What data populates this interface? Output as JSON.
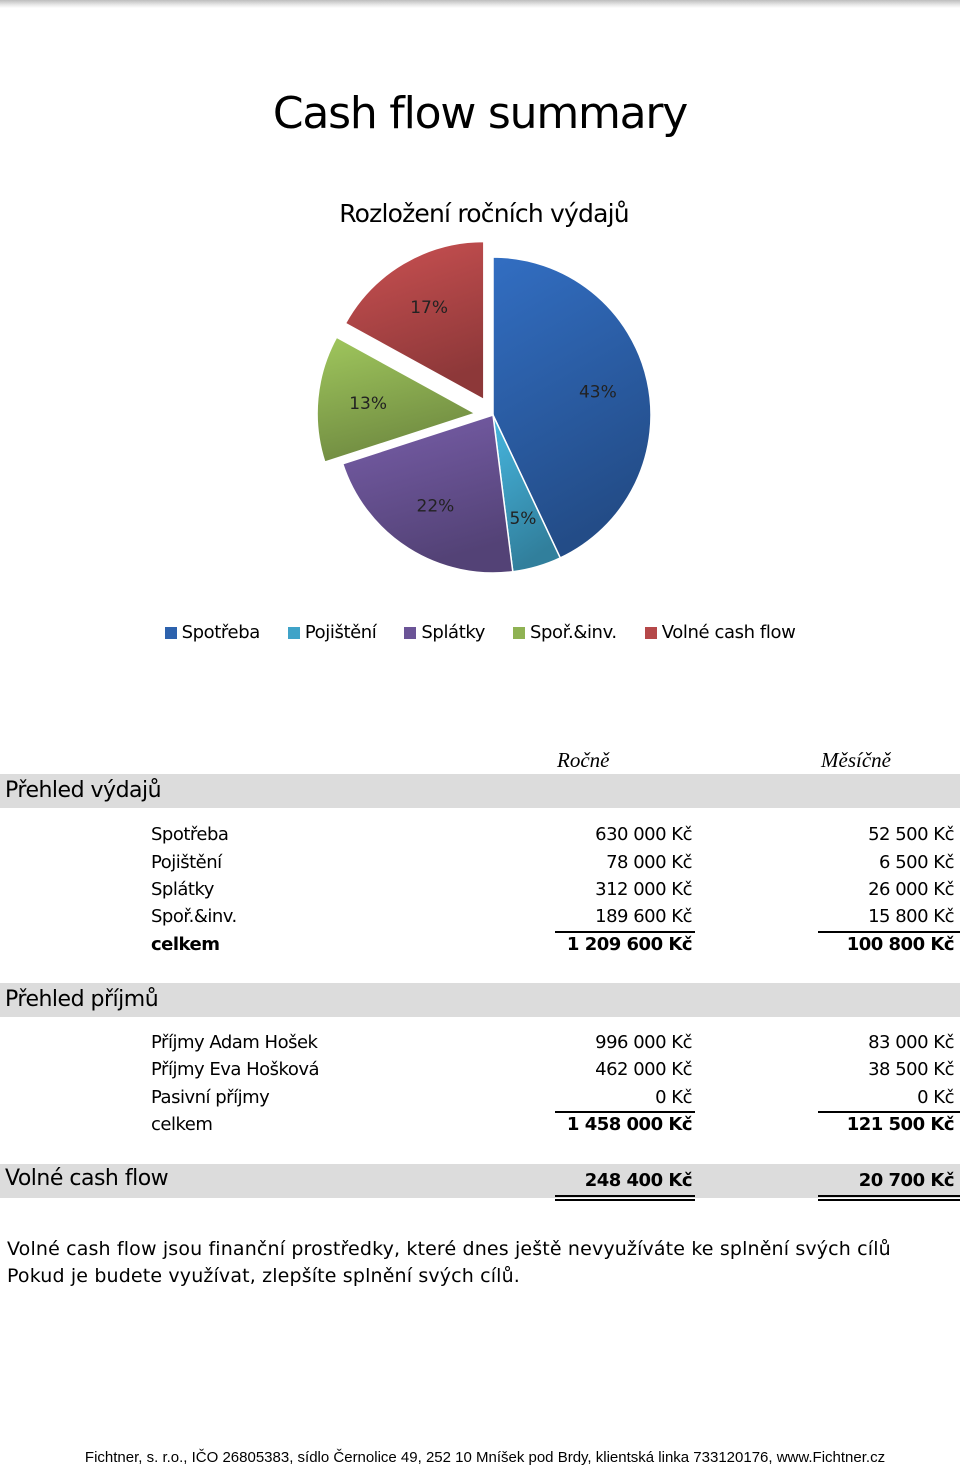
{
  "title": "Cash flow summary",
  "chart_data": {
    "type": "pie",
    "title": "Rozložení ročních výdajů",
    "categories": [
      "Spotřeba",
      "Pojištění",
      "Splátky",
      "Spoř.&inv.",
      "Volné cash flow"
    ],
    "values": [
      43,
      5,
      22,
      13,
      17
    ],
    "labels": [
      "43%",
      "5%",
      "22%",
      "13%",
      "17%"
    ],
    "colors": [
      "#2d62ad",
      "#3fa3c8",
      "#6b5497",
      "#8fb253",
      "#b54849"
    ],
    "exploded": [
      false,
      false,
      false,
      true,
      true
    ],
    "legend": "bottom"
  },
  "table": {
    "col_annual": "Ročně",
    "col_monthly": "Měsíčně",
    "expenses": {
      "heading": "Přehled výdajů",
      "rows": [
        {
          "label": "Spotřeba",
          "annual": "630 000 Kč",
          "monthly": "52 500 Kč"
        },
        {
          "label": "Pojištění",
          "annual": "78 000 Kč",
          "monthly": "6 500 Kč"
        },
        {
          "label": "Splátky",
          "annual": "312 000 Kč",
          "monthly": "26 000 Kč"
        },
        {
          "label": "Spoř.&inv.",
          "annual": "189 600 Kč",
          "monthly": "15 800 Kč"
        }
      ],
      "total": {
        "label": "celkem",
        "annual": "1 209 600 Kč",
        "monthly": "100 800 Kč"
      }
    },
    "income": {
      "heading": "Přehled příjmů",
      "rows": [
        {
          "label": "Příjmy Adam Hošek",
          "annual": "996 000 Kč",
          "monthly": "83 000 Kč"
        },
        {
          "label": "Příjmy Eva Hošková",
          "annual": "462 000 Kč",
          "monthly": "38 500 Kč"
        },
        {
          "label": "Pasivní příjmy",
          "annual": "0 Kč",
          "monthly": "0 Kč"
        }
      ],
      "total": {
        "label": "celkem",
        "annual": "1 458 000 Kč",
        "monthly": "121 500 Kč"
      }
    },
    "free_cash_flow": {
      "heading": "Volné cash flow",
      "annual": "248 400 Kč",
      "monthly": "20 700 Kč"
    }
  },
  "note": {
    "line1": "Volné cash flow jsou finanční prostředky, které dnes ještě nevyužíváte ke splnění svých cílů",
    "line2": "Pokud je budete využívat, zlepšíte splnění svých cílů."
  },
  "footer": "Fichtner, s. r.o., IČO 26805383, sídlo Černolice 49, 252 10 Mníšek pod Brdy, klientská linka 733120176, www.Fichtner.cz"
}
